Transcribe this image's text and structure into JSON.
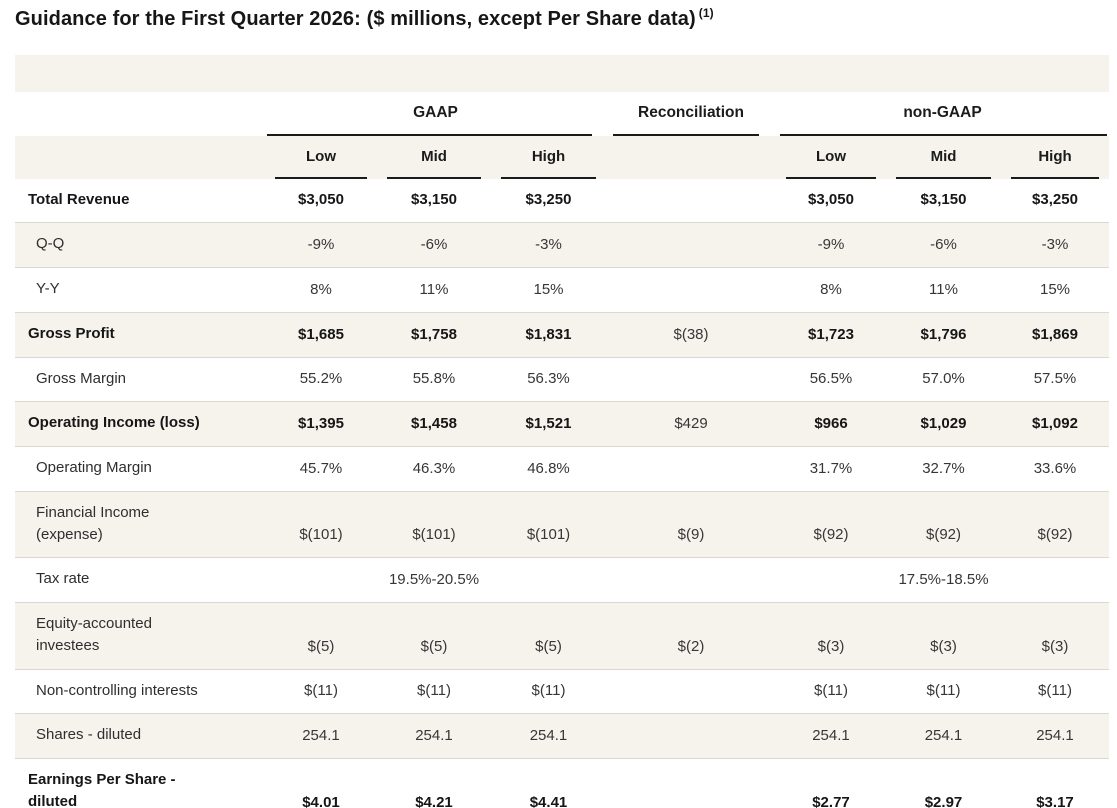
{
  "title": {
    "text": "Guidance for the First Quarter 2026: ($ millions, except Per Share data)",
    "footnote": "(1)"
  },
  "colors": {
    "row_stripe_beige": "#f6f3ed",
    "group_underline": "#1a1a1a",
    "row_separator": "#dbd8d1",
    "text_bold": "#161616",
    "text_regular": "#363636"
  },
  "table": {
    "column_groups": {
      "gaap": "GAAP",
      "reconciliation": "Reconciliation",
      "non_gaap": "non-GAAP"
    },
    "sub_headers": {
      "gaap_low": "Low",
      "gaap_mid": "Mid",
      "gaap_high": "High",
      "non_gaap_low": "Low",
      "non_gaap_mid": "Mid",
      "non_gaap_high": "High"
    },
    "rows": [
      {
        "label": "Total Revenue",
        "bold": true,
        "values": [
          "$3,050",
          "$3,150",
          "$3,250",
          "",
          "$3,050",
          "$3,150",
          "$3,250"
        ]
      },
      {
        "label": "Q-Q",
        "bold": false,
        "values": [
          "-9%",
          "-6%",
          "-3%",
          "",
          "-9%",
          "-6%",
          "-3%"
        ]
      },
      {
        "label": "Y-Y",
        "bold": false,
        "values": [
          "8%",
          "11%",
          "15%",
          "",
          "8%",
          "11%",
          "15%"
        ]
      },
      {
        "label": "Gross Profit",
        "bold": true,
        "values": [
          "$1,685",
          "$1,758",
          "$1,831",
          "$(38)",
          "$1,723",
          "$1,796",
          "$1,869"
        ]
      },
      {
        "label": "Gross Margin",
        "bold": false,
        "values": [
          "55.2%",
          "55.8%",
          "56.3%",
          "",
          "56.5%",
          "57.0%",
          "57.5%"
        ]
      },
      {
        "label": "Operating Income (loss)",
        "bold": true,
        "values": [
          "$1,395",
          "$1,458",
          "$1,521",
          "$429",
          "$966",
          "$1,029",
          "$1,092"
        ]
      },
      {
        "label": "Operating Margin",
        "bold": false,
        "values": [
          "45.7%",
          "46.3%",
          "46.8%",
          "",
          "31.7%",
          "32.7%",
          "33.6%"
        ]
      },
      {
        "label": [
          "Financial Income",
          "(expense)"
        ],
        "bold": false,
        "values": [
          "$(101)",
          "$(101)",
          "$(101)",
          "$(9)",
          "$(92)",
          "$(92)",
          "$(92)"
        ]
      },
      {
        "label": "Tax rate",
        "bold": false,
        "values": [
          "",
          "19.5%-20.5%",
          "",
          "",
          "",
          "17.5%-18.5%",
          ""
        ]
      },
      {
        "label": [
          "Equity-accounted",
          "investees"
        ],
        "bold": false,
        "values": [
          "$(5)",
          "$(5)",
          "$(5)",
          "$(2)",
          "$(3)",
          "$(3)",
          "$(3)"
        ]
      },
      {
        "label": "Non-controlling interests",
        "bold": false,
        "values": [
          "$(11)",
          "$(11)",
          "$(11)",
          "",
          "$(11)",
          "$(11)",
          "$(11)"
        ]
      },
      {
        "label": "Shares - diluted",
        "bold": false,
        "values": [
          "254.1",
          "254.1",
          "254.1",
          "",
          "254.1",
          "254.1",
          "254.1"
        ]
      },
      {
        "label": [
          "Earnings Per Share -",
          "diluted"
        ],
        "bold": true,
        "values": [
          "$4.01",
          "$4.21",
          "$4.41",
          "",
          "$2.77",
          "$2.97",
          "$3.17"
        ]
      }
    ]
  }
}
